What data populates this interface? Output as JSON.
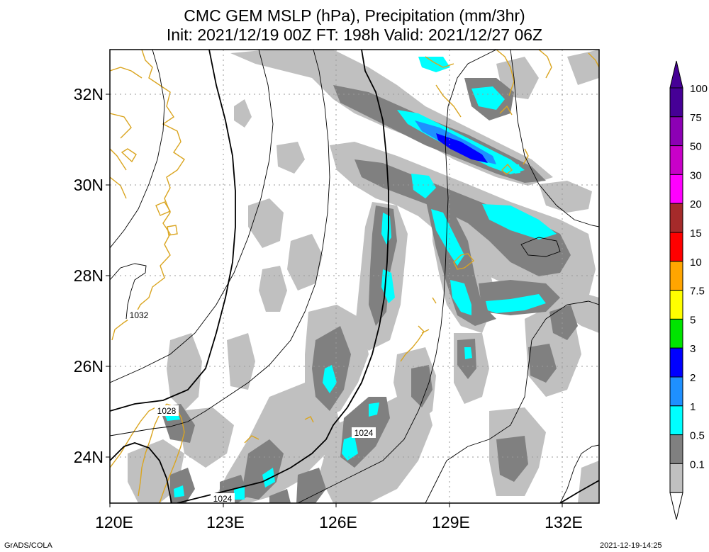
{
  "title": {
    "line1": "CMC GEM MSLP (hPa), Precipitation (mm/3hr)",
    "line2": "Init: 2021/12/19 00Z  FT: 198h  Valid: 2021/12/27 06Z"
  },
  "axes": {
    "lat_labels": [
      "32N",
      "30N",
      "28N",
      "26N",
      "24N"
    ],
    "lon_labels": [
      "120E",
      "123E",
      "126E",
      "129E",
      "132E"
    ]
  },
  "isobar_labels": [
    "1032",
    "1028",
    "1024",
    "1024"
  ],
  "colorbar": {
    "labels": [
      "100",
      "75",
      "50",
      "30",
      "20",
      "15",
      "10",
      "7.5",
      "5",
      "3",
      "2",
      "1",
      "0.5",
      "0.1"
    ],
    "colors": [
      "#460096",
      "#8c00b4",
      "#c800c8",
      "#ff00ff",
      "#a52a2a",
      "#ff0000",
      "#ffa500",
      "#ffff00",
      "#00e400",
      "#0000ff",
      "#1e90ff",
      "#00ffff",
      "#808080",
      "#c0c0c0"
    ]
  },
  "precip_colors": {
    "light": "#c0c0c0",
    "medium": "#808080",
    "cyan": "#00ffff",
    "blue": "#1e90ff",
    "dark": "#0000ff"
  },
  "coast_color": "#daa520",
  "footer": {
    "left": "GrADS/COLA",
    "right": "2021-12-19-14:25"
  }
}
